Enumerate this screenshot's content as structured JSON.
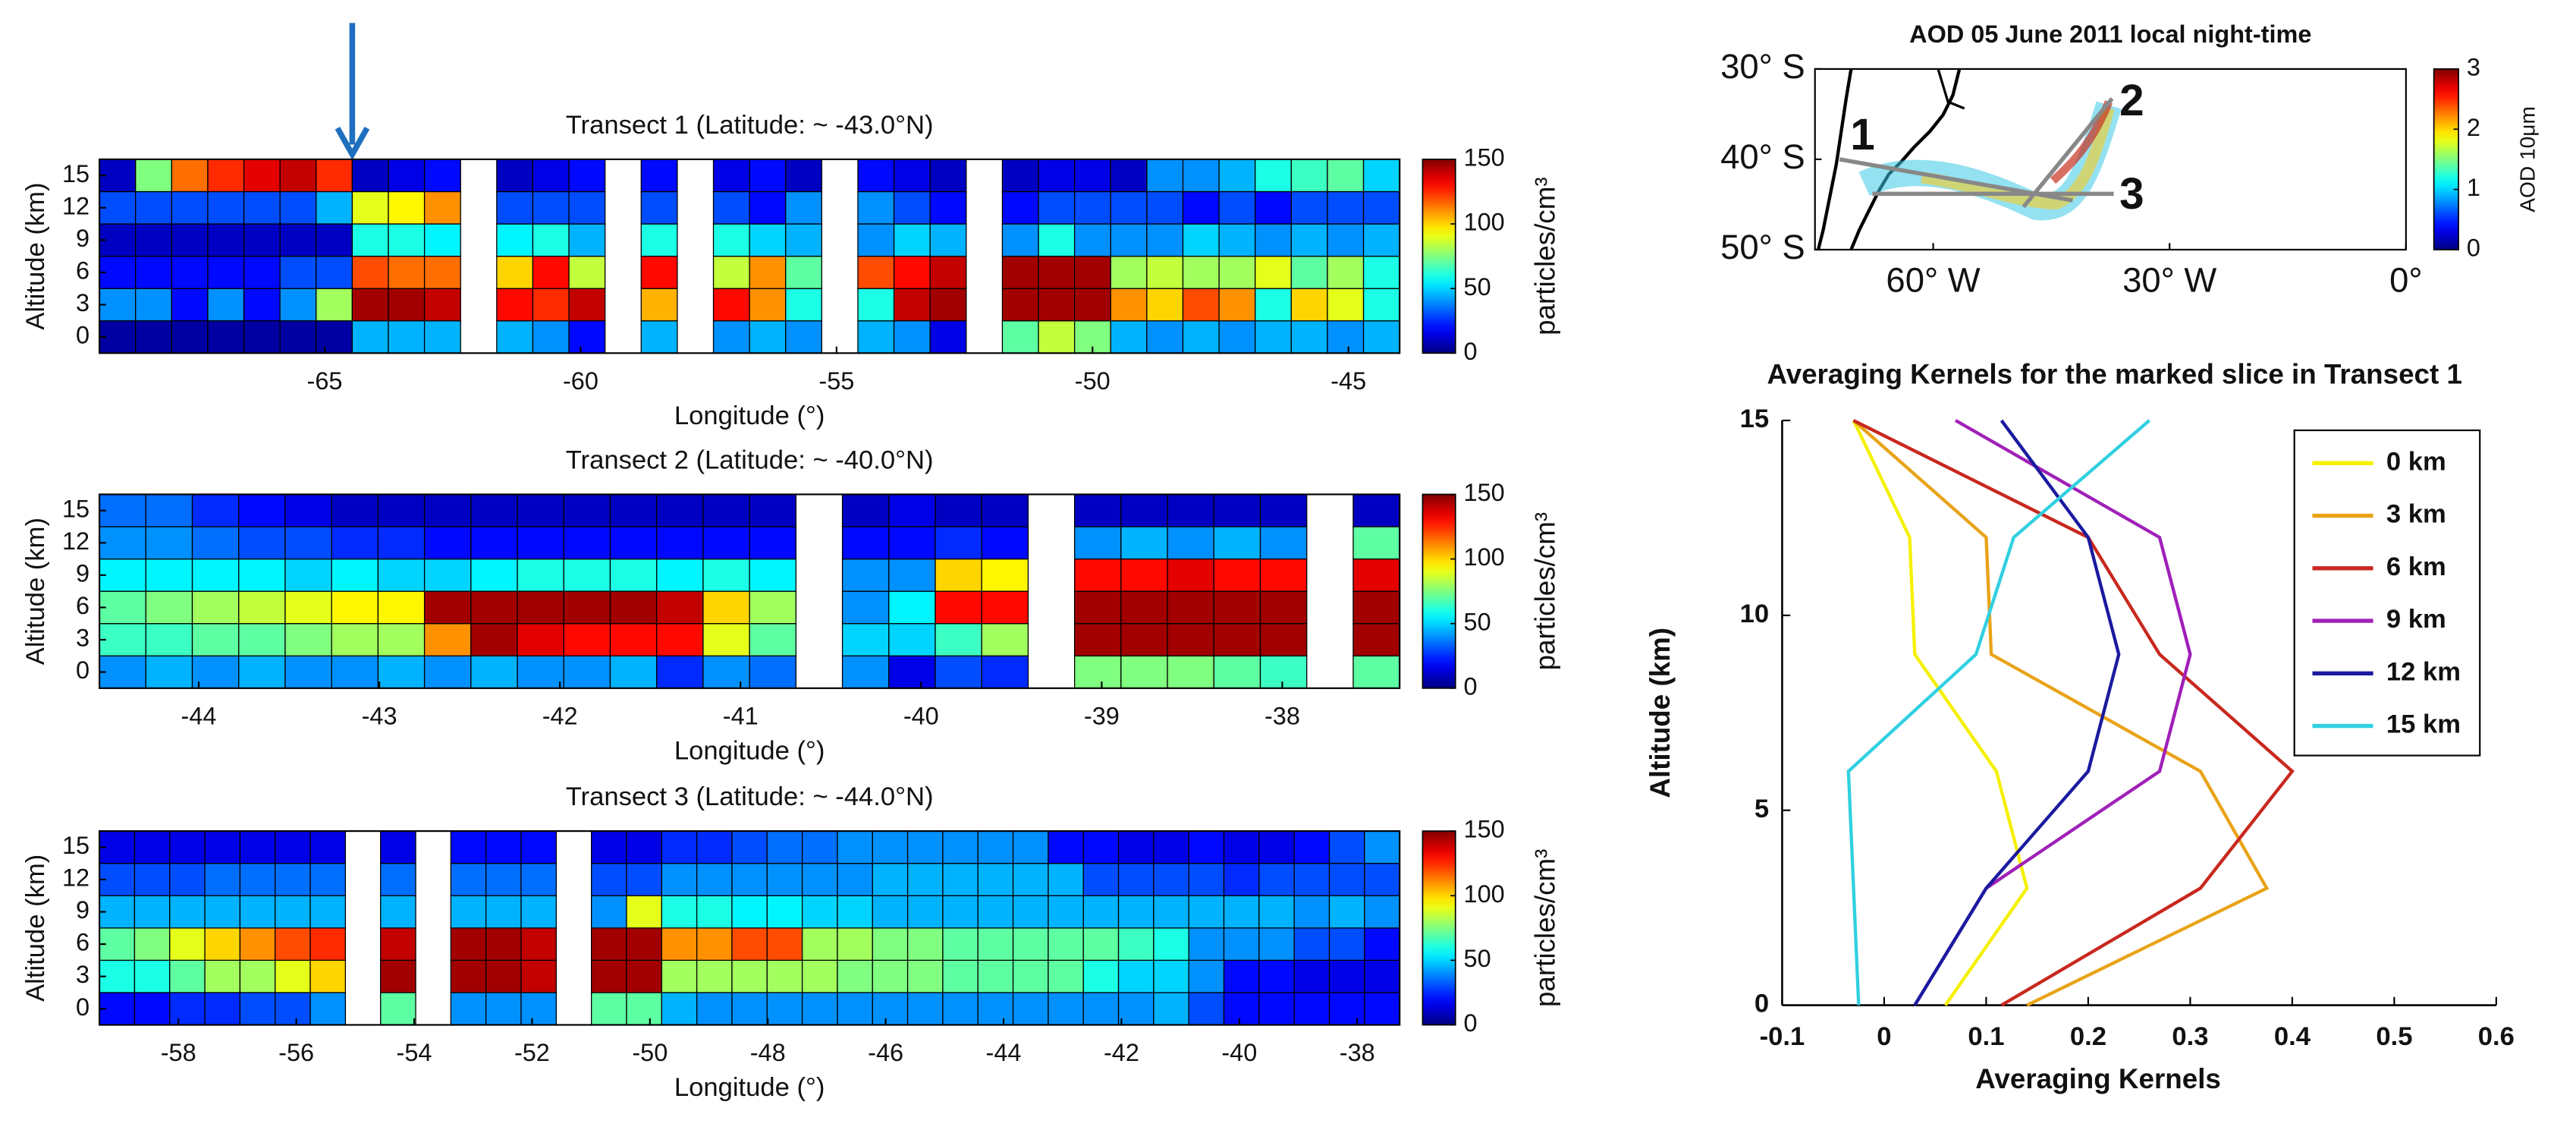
{
  "chart_data": [
    {
      "type": "heatmap",
      "title": "Transect 1 (Latitude: ~ -43.0°N)",
      "x_label": "Longitude (°)",
      "y_label": "Altitude (km)",
      "y": [
        0,
        3,
        6,
        9,
        12,
        15
      ],
      "xlim": [
        -69.4,
        -44.0
      ],
      "xticks": [
        -65,
        -60,
        -55,
        -50,
        -45
      ],
      "clim": [
        0,
        150
      ],
      "cticks": [
        0,
        50,
        100,
        150
      ],
      "colorbar_label": "particles/cm³",
      "colormap": "jet",
      "z": [
        [
          5,
          5,
          5,
          5,
          5,
          5,
          5,
          45,
          45,
          45,
          null,
          45,
          40,
          20,
          null,
          45,
          null,
          40,
          45,
          40,
          null,
          45,
          40,
          15,
          null,
          70,
          85,
          75,
          45,
          40,
          45,
          40,
          45,
          45,
          40,
          45
        ],
        [
          40,
          40,
          20,
          40,
          20,
          40,
          80,
          145,
          145,
          140,
          null,
          130,
          125,
          140,
          null,
          105,
          null,
          130,
          110,
          60,
          null,
          60,
          140,
          145,
          null,
          145,
          145,
          145,
          110,
          100,
          120,
          110,
          60,
          100,
          90,
          60
        ],
        [
          20,
          20,
          20,
          20,
          20,
          30,
          30,
          120,
          115,
          115,
          null,
          100,
          130,
          85,
          null,
          130,
          null,
          85,
          110,
          70,
          null,
          120,
          130,
          140,
          null,
          145,
          145,
          145,
          80,
          85,
          80,
          80,
          90,
          70,
          80,
          60
        ],
        [
          10,
          10,
          10,
          10,
          10,
          10,
          10,
          60,
          60,
          55,
          null,
          55,
          60,
          45,
          null,
          60,
          null,
          60,
          50,
          45,
          null,
          40,
          50,
          45,
          null,
          40,
          60,
          40,
          40,
          40,
          50,
          45,
          40,
          45,
          40,
          45
        ],
        [
          30,
          30,
          30,
          30,
          30,
          30,
          45,
          90,
          95,
          110,
          null,
          30,
          30,
          30,
          null,
          30,
          null,
          30,
          20,
          40,
          null,
          40,
          30,
          20,
          null,
          20,
          30,
          30,
          30,
          30,
          20,
          30,
          20,
          30,
          30,
          30
        ],
        [
          10,
          75,
          115,
          125,
          135,
          140,
          125,
          10,
          15,
          20,
          null,
          10,
          15,
          20,
          null,
          20,
          null,
          15,
          20,
          10,
          null,
          20,
          15,
          10,
          null,
          10,
          15,
          15,
          10,
          40,
          40,
          45,
          60,
          65,
          70,
          50
        ]
      ]
    },
    {
      "type": "heatmap",
      "title": "Transect 2 (Latitude: ~ -40.0°N)",
      "x_label": "Longitude (°)",
      "y_label": "Altitude (km)",
      "y": [
        0,
        3,
        6,
        9,
        12,
        15
      ],
      "xlim": [
        -44.55,
        -37.35
      ],
      "xticks": [
        -44,
        -43,
        -42,
        -41,
        -40,
        -39,
        -38
      ],
      "clim": [
        0,
        150
      ],
      "cticks": [
        0,
        50,
        100,
        150
      ],
      "colorbar_label": "particles/cm³",
      "colormap": "jet",
      "z": [
        [
          40,
          45,
          40,
          45,
          40,
          40,
          45,
          40,
          45,
          40,
          40,
          45,
          25,
          40,
          35,
          null,
          40,
          15,
          30,
          25,
          null,
          75,
          75,
          75,
          70,
          65,
          null,
          70
        ],
        [
          65,
          65,
          70,
          70,
          75,
          80,
          80,
          110,
          145,
          135,
          130,
          130,
          130,
          90,
          70,
          null,
          50,
          50,
          65,
          80,
          null,
          145,
          145,
          145,
          145,
          145,
          null,
          145
        ],
        [
          70,
          75,
          80,
          85,
          90,
          95,
          95,
          145,
          145,
          145,
          145,
          145,
          140,
          100,
          80,
          null,
          40,
          55,
          130,
          130,
          null,
          145,
          145,
          145,
          145,
          145,
          null,
          145
        ],
        [
          55,
          55,
          55,
          55,
          50,
          55,
          50,
          50,
          55,
          60,
          60,
          60,
          55,
          60,
          55,
          null,
          40,
          40,
          100,
          95,
          null,
          130,
          130,
          135,
          130,
          130,
          null,
          135
        ],
        [
          40,
          40,
          35,
          30,
          30,
          25,
          25,
          20,
          20,
          20,
          20,
          20,
          20,
          20,
          20,
          null,
          20,
          20,
          25,
          20,
          null,
          40,
          45,
          40,
          45,
          40,
          null,
          70
        ],
        [
          35,
          35,
          25,
          20,
          15,
          10,
          10,
          10,
          10,
          10,
          10,
          10,
          10,
          10,
          10,
          null,
          10,
          15,
          10,
          10,
          null,
          10,
          10,
          10,
          10,
          10,
          null,
          10
        ]
      ]
    },
    {
      "type": "heatmap",
      "title": "Transect 3 (Latitude: ~ -44.0°N)",
      "x_label": "Longitude (°)",
      "y_label": "Altitude (km)",
      "y": [
        0,
        3,
        6,
        9,
        12,
        15
      ],
      "xlim": [
        -59.34,
        -37.28
      ],
      "xticks": [
        -58,
        -56,
        -54,
        -52,
        -50,
        -48,
        -46,
        -44,
        -42,
        -40,
        -38
      ],
      "clim": [
        0,
        150
      ],
      "cticks": [
        0,
        50,
        100,
        150
      ],
      "colorbar_label": "particles/cm³",
      "colormap": "jet",
      "z": [
        [
          20,
          20,
          25,
          25,
          30,
          30,
          40,
          null,
          70,
          null,
          40,
          40,
          40,
          null,
          70,
          70,
          45,
          40,
          40,
          40,
          40,
          40,
          40,
          40,
          40,
          40,
          40,
          40,
          40,
          40,
          45,
          30,
          20,
          20,
          20,
          20,
          20
        ],
        [
          60,
          60,
          70,
          80,
          80,
          90,
          100,
          null,
          145,
          null,
          145,
          145,
          140,
          null,
          145,
          145,
          80,
          80,
          80,
          80,
          80,
          75,
          75,
          75,
          70,
          70,
          70,
          70,
          60,
          50,
          50,
          40,
          20,
          20,
          15,
          15,
          15
        ],
        [
          70,
          75,
          90,
          100,
          110,
          120,
          125,
          null,
          140,
          null,
          145,
          145,
          140,
          null,
          145,
          145,
          110,
          110,
          120,
          120,
          80,
          80,
          75,
          75,
          70,
          70,
          70,
          70,
          70,
          65,
          60,
          40,
          40,
          40,
          30,
          30,
          20
        ],
        [
          45,
          45,
          45,
          45,
          45,
          45,
          45,
          null,
          45,
          null,
          45,
          45,
          45,
          null,
          40,
          90,
          60,
          60,
          55,
          55,
          50,
          50,
          45,
          45,
          45,
          45,
          45,
          45,
          45,
          45,
          45,
          45,
          45,
          45,
          40,
          45,
          40
        ],
        [
          30,
          30,
          30,
          35,
          35,
          35,
          35,
          null,
          35,
          null,
          35,
          35,
          35,
          null,
          30,
          30,
          40,
          40,
          40,
          40,
          40,
          40,
          45,
          45,
          45,
          45,
          45,
          45,
          30,
          30,
          30,
          30,
          25,
          30,
          30,
          30,
          30
        ],
        [
          15,
          15,
          15,
          15,
          15,
          15,
          15,
          null,
          15,
          null,
          20,
          20,
          20,
          null,
          15,
          15,
          25,
          25,
          30,
          35,
          35,
          40,
          40,
          40,
          40,
          40,
          40,
          20,
          20,
          15,
          15,
          20,
          15,
          15,
          20,
          30,
          40
        ]
      ]
    },
    {
      "type": "map",
      "title": "AOD 05 June 2011 local night-time",
      "xlim": [
        -75,
        0
      ],
      "ylim": [
        -50,
        -30
      ],
      "xticks": [
        {
          "value": -60,
          "label": "60° W"
        },
        {
          "value": -30,
          "label": "30° W"
        },
        {
          "value": 0,
          "label": "0°"
        }
      ],
      "yticks": [
        {
          "value": -30,
          "label": "30° S"
        },
        {
          "value": -40,
          "label": "40° S"
        },
        {
          "value": -50,
          "label": "50° S"
        }
      ],
      "clim": [
        0,
        3
      ],
      "cticks": [
        0,
        1,
        2,
        3
      ],
      "colorbar_label": "AOD 10μm",
      "colormap": "jet",
      "transect_labels": [
        "1",
        "2",
        "3"
      ]
    },
    {
      "type": "line",
      "title": "Averaging Kernels for the marked slice in Transect 1",
      "x_label": "Averaging Kernels",
      "y_label": "Altitude (km)",
      "y": [
        0,
        3,
        6,
        9,
        12,
        15
      ],
      "xlim": [
        -0.1,
        0.6
      ],
      "xticks": [
        -0.1,
        0,
        0.1,
        0.2,
        0.3,
        0.4,
        0.5,
        0.6
      ],
      "ylim": [
        0,
        15
      ],
      "yticks": [
        0,
        5,
        10,
        15
      ],
      "legend": "upper right",
      "series": [
        {
          "name": "0 km",
          "color": "#f5f000",
          "values": [
            0.06,
            0.14,
            0.11,
            0.03,
            0.025,
            -0.03
          ]
        },
        {
          "name": "3 km",
          "color": "#e8a317",
          "values": [
            0.14,
            0.375,
            0.31,
            0.105,
            0.1,
            -0.03
          ]
        },
        {
          "name": "6 km",
          "color": "#c8281e",
          "values": [
            0.115,
            0.31,
            0.4,
            0.27,
            0.2,
            -0.03
          ]
        },
        {
          "name": "9 km",
          "color": "#a020b8",
          "values": [
            0.03,
            0.1,
            0.27,
            0.3,
            0.27,
            0.07
          ]
        },
        {
          "name": "12 km",
          "color": "#1a1aa0",
          "values": [
            0.03,
            0.1,
            0.2,
            0.23,
            0.2,
            0.115
          ]
        },
        {
          "name": "15 km",
          "color": "#30d0e0",
          "values": [
            -0.025,
            -0.03,
            -0.035,
            0.09,
            0.127,
            0.26
          ]
        }
      ]
    }
  ]
}
